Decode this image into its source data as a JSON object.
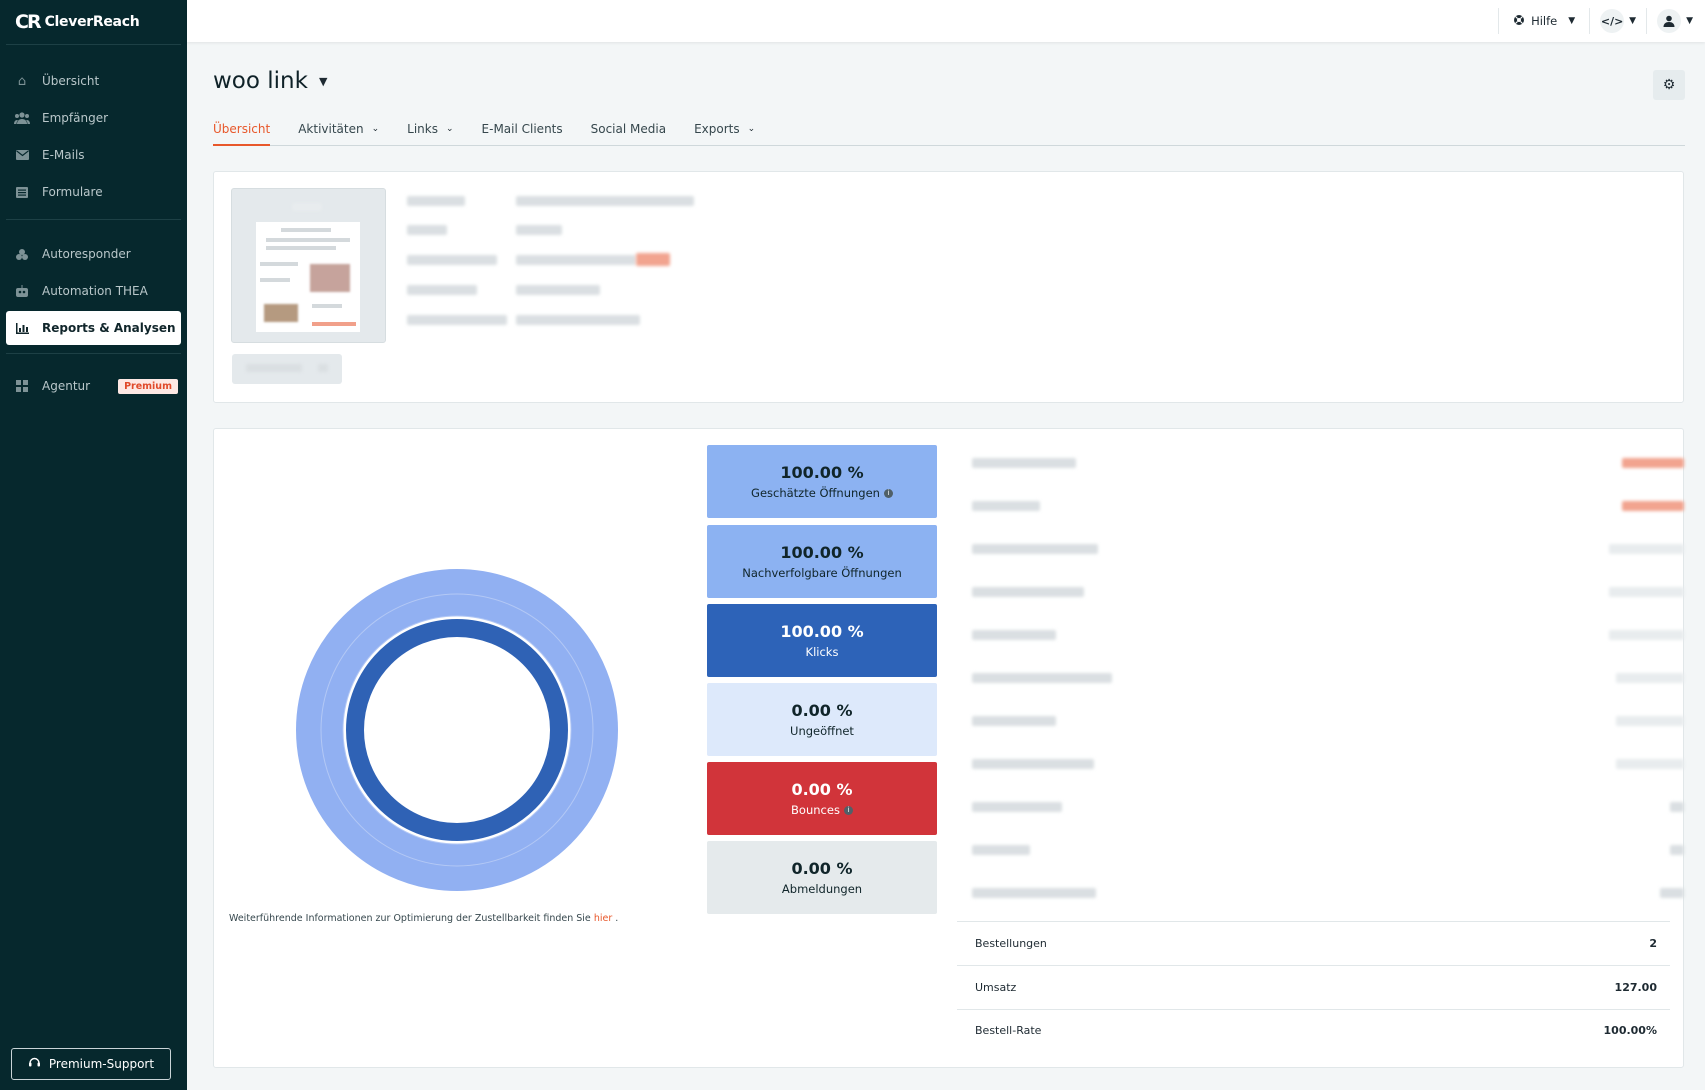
{
  "brand": {
    "name": "CleverReach",
    "mark": "CR"
  },
  "sidebar": {
    "items": [
      {
        "label": "Übersicht",
        "icon": "home-icon"
      },
      {
        "label": "Empfänger",
        "icon": "users-icon"
      },
      {
        "label": "E-Mails",
        "icon": "envelope-icon"
      },
      {
        "label": "Formulare",
        "icon": "form-icon"
      },
      {
        "label": "Autoresponder",
        "icon": "autoresponder-icon"
      },
      {
        "label": "Automation THEA",
        "icon": "robot-icon"
      },
      {
        "label": "Reports & Analysen",
        "icon": "bar-chart-icon",
        "active": true
      },
      {
        "label": "Agentur",
        "icon": "grid-icon",
        "badge": "Premium"
      }
    ],
    "support_label": "Premium-Support"
  },
  "topbar": {
    "help_label": "Hilfe"
  },
  "page": {
    "title": "woo link"
  },
  "tabs": [
    {
      "label": "Übersicht",
      "active": true
    },
    {
      "label": "Aktivitäten",
      "dropdown": true
    },
    {
      "label": "Links",
      "dropdown": true
    },
    {
      "label": "E-Mail Clients"
    },
    {
      "label": "Social Media"
    },
    {
      "label": "Exports",
      "dropdown": true
    }
  ],
  "stats": [
    {
      "value": "100.00 %",
      "label": "Geschätzte Öffnungen",
      "info": true,
      "bg": "#8cb2f2",
      "fg": "#10252a"
    },
    {
      "value": "100.00 %",
      "label": "Nachverfolgbare Öffnungen",
      "info": false,
      "bg": "#8cb2f2",
      "fg": "#10252a"
    },
    {
      "value": "100.00 %",
      "label": "Klicks",
      "info": false,
      "bg": "#2d63b8",
      "fg": "#ffffff"
    },
    {
      "value": "0.00 %",
      "label": "Ungeöffnet",
      "info": false,
      "bg": "#dde9fb",
      "fg": "#10252a"
    },
    {
      "value": "0.00 %",
      "label": "Bounces",
      "info": true,
      "bg": "#d1343a",
      "fg": "#ffffff"
    },
    {
      "value": "0.00 %",
      "label": "Abmeldungen",
      "info": false,
      "bg": "#e5eaec",
      "fg": "#10252a"
    }
  ],
  "donut": {
    "outer_color": "#91b0f2",
    "inner_color": "#2f62b5"
  },
  "footnote": {
    "text": "Weiterführende Informationen zur Optimierung der Zustellbarkeit finden Sie",
    "link": "hier",
    "end": "."
  },
  "summary": [
    {
      "label": "Bestellungen",
      "value": "2"
    },
    {
      "label": "Umsatz",
      "value": "127.00"
    },
    {
      "label": "Bestell-Rate",
      "value": "100.00%"
    }
  ],
  "colors": {
    "sidebar_bg": "#06282d",
    "accent": "#e8582b"
  }
}
